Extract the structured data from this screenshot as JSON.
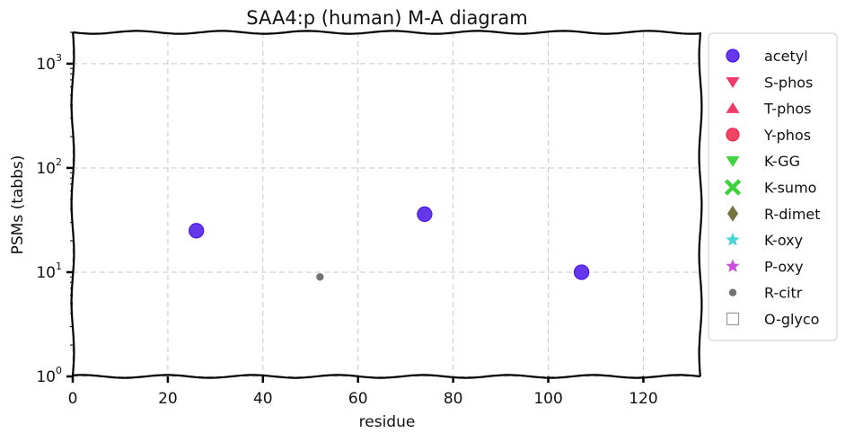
{
  "chart_data": {
    "type": "scatter",
    "title": "SAA4:p (human) M-A diagram",
    "xlabel": "residue",
    "ylabel": "PSMs (tabbs)",
    "xlim": [
      0,
      132
    ],
    "ylim": [
      1,
      2000
    ],
    "yscale": "log",
    "x_ticks": [
      0,
      20,
      40,
      60,
      80,
      100,
      120
    ],
    "y_ticks": [
      {
        "value": 1,
        "base": "10",
        "exp": "0"
      },
      {
        "value": 10,
        "base": "10",
        "exp": "1"
      },
      {
        "value": 100,
        "base": "10",
        "exp": "2"
      },
      {
        "value": 1000,
        "base": "10",
        "exp": "3"
      }
    ],
    "grid": true,
    "legend_position": "outside-right",
    "series": [
      {
        "name": "acetyl",
        "marker": "circle",
        "color": "#4a16e8",
        "x": [
          26,
          74,
          107
        ],
        "y": [
          25,
          36,
          10
        ]
      },
      {
        "name": "S-phos",
        "marker": "triangle-down",
        "color": "#f0245a",
        "x": [],
        "y": []
      },
      {
        "name": "T-phos",
        "marker": "triangle-up",
        "color": "#f0245a",
        "x": [],
        "y": []
      },
      {
        "name": "Y-phos",
        "marker": "circle",
        "color": "#f0244a",
        "x": [],
        "y": []
      },
      {
        "name": "K-GG",
        "marker": "triangle-down",
        "color": "#2ed02e",
        "x": [],
        "y": []
      },
      {
        "name": "K-sumo",
        "marker": "x",
        "color": "#3fd23f",
        "x": [],
        "y": []
      },
      {
        "name": "R-dimet",
        "marker": "diamond",
        "color": "#6b6b3a",
        "x": [],
        "y": []
      },
      {
        "name": "K-oxy",
        "marker": "star",
        "color": "#34d0d0",
        "x": [],
        "y": []
      },
      {
        "name": "P-oxy",
        "marker": "star",
        "color": "#c83ad8",
        "x": [],
        "y": []
      },
      {
        "name": "R-citr",
        "marker": "small-circle",
        "color": "#6a6a6a",
        "x": [
          52
        ],
        "y": [
          9
        ]
      },
      {
        "name": "O-glyco",
        "marker": "square-open",
        "color": "#9a9a9a",
        "x": [],
        "y": []
      }
    ]
  }
}
